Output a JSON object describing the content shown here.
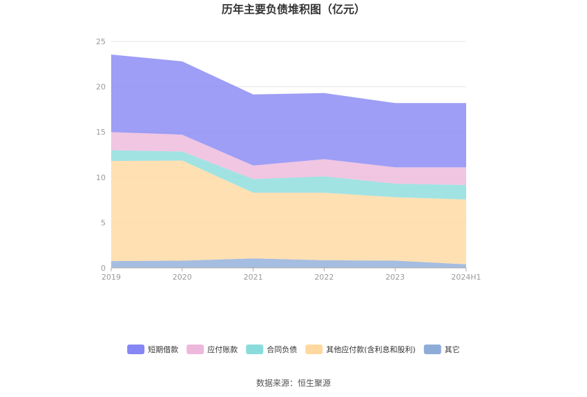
{
  "chart_data": {
    "type": "area",
    "stacked": true,
    "title": "历年主要负债堆积图（亿元）",
    "categories": [
      "2019",
      "2020",
      "2021",
      "2022",
      "2023",
      "2024H1"
    ],
    "y_ticks": [
      "0",
      "5",
      "10",
      "15",
      "20",
      "25"
    ],
    "ylim": [
      0,
      25
    ],
    "grid": true,
    "legend_position": "bottom",
    "series": [
      {
        "name": "其它",
        "color": "#8eacd8",
        "values": [
          0.75,
          0.8,
          1.05,
          0.85,
          0.8,
          0.4
        ]
      },
      {
        "name": "其他应付款(含利息和股利)",
        "color": "#ffd8a0",
        "values": [
          11.05,
          11.05,
          7.25,
          7.45,
          7.0,
          7.15
        ]
      },
      {
        "name": "合同负债",
        "color": "#8adcdc",
        "values": [
          1.2,
          1.0,
          1.5,
          1.8,
          1.5,
          1.6
        ]
      },
      {
        "name": "应付账款",
        "color": "#eeb8dc",
        "values": [
          2.0,
          1.85,
          1.5,
          1.9,
          1.8,
          1.95
        ]
      },
      {
        "name": "短期借款",
        "color": "#8686f4",
        "values": [
          8.55,
          8.1,
          7.85,
          7.3,
          7.1,
          7.1
        ]
      }
    ]
  },
  "legend": {
    "items": [
      {
        "label": "短期借款",
        "color": "#8686f4"
      },
      {
        "label": "应付账款",
        "color": "#eeb8dc"
      },
      {
        "label": "合同负债",
        "color": "#8adcdc"
      },
      {
        "label": "其他应付款(含利息和股利)",
        "color": "#ffd8a0"
      },
      {
        "label": "其它",
        "color": "#8eacd8"
      }
    ]
  },
  "source": "数据来源：恒生聚源"
}
